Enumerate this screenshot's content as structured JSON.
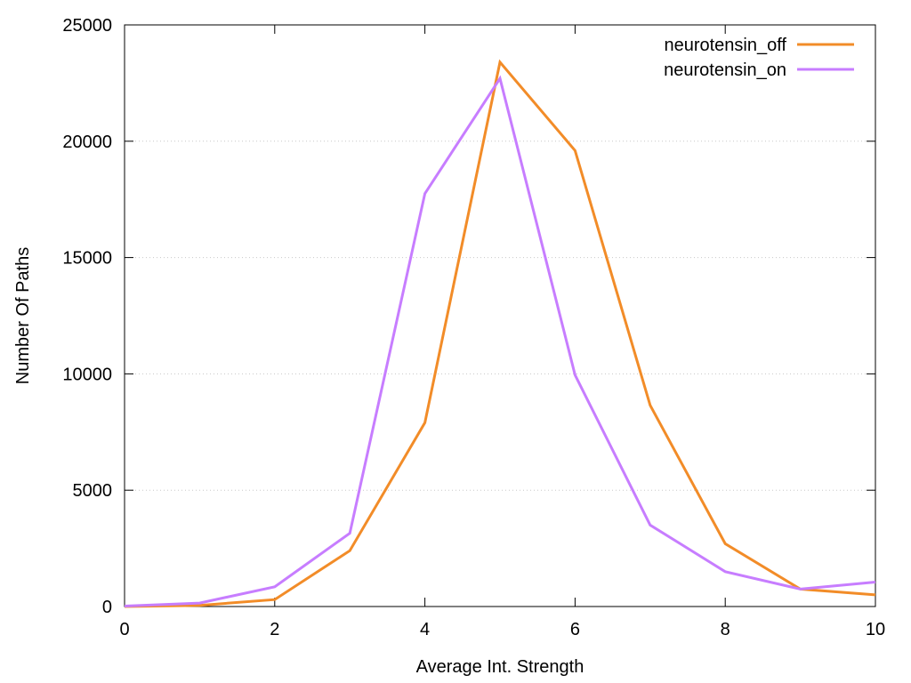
{
  "chart_data": {
    "type": "line",
    "xlabel": "Average Int. Strength",
    "ylabel": "Number Of Paths",
    "xlim": [
      0,
      10
    ],
    "ylim": [
      0,
      25000
    ],
    "x_ticks": [
      "0",
      "2",
      "4",
      "6",
      "8",
      "10"
    ],
    "y_ticks": [
      "0",
      "5000",
      "10000",
      "15000",
      "20000",
      "25000"
    ],
    "grid": "y-dotted",
    "legend_position": "top-right",
    "x": [
      0,
      1,
      2,
      3,
      4,
      5,
      6,
      7,
      8,
      9,
      10
    ],
    "series": [
      {
        "name": "neurotensin_off",
        "color": "#f28c28",
        "values": [
          0,
          50,
          300,
          2400,
          7900,
          23400,
          19600,
          8650,
          2700,
          750,
          500
        ]
      },
      {
        "name": "neurotensin_on",
        "color": "#c77dff",
        "values": [
          20,
          150,
          850,
          3150,
          17750,
          22700,
          9950,
          3500,
          1500,
          750,
          1050
        ]
      }
    ]
  }
}
